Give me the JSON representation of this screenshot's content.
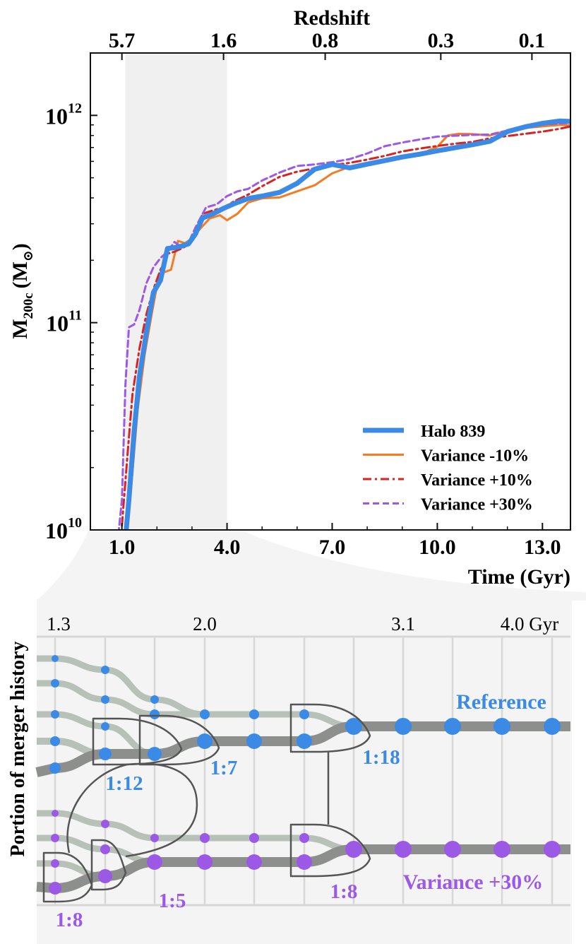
{
  "chart_data": [
    {
      "type": "line",
      "title": "",
      "top_axis_label": "Redshift",
      "top_ticks": [
        {
          "t": 1.0,
          "label": "5.7"
        },
        {
          "t": 3.9,
          "label": "1.6"
        },
        {
          "t": 6.8,
          "label": "0.8"
        },
        {
          "t": 10.1,
          "label": "0.3"
        },
        {
          "t": 12.7,
          "label": "0.1"
        }
      ],
      "xlabel": "Time (Gyr)",
      "ylabel_main": "M",
      "ylabel_sub": "200c",
      "ylabel_unit": "(M",
      "ylabel_unit_symbol": "⊙",
      "ylabel_close": ")",
      "xlim": [
        0.1,
        13.8
      ],
      "ylim": [
        10000000000,
        2000000000000
      ],
      "yscale": "log",
      "x_ticks": [
        {
          "value": 1.0,
          "label": "1.0"
        },
        {
          "value": 4.0,
          "label": "4.0"
        },
        {
          "value": 7.0,
          "label": "7.0"
        },
        {
          "value": 10.0,
          "label": "10.0"
        },
        {
          "value": 13.0,
          "label": "13.0"
        }
      ],
      "y_ticks": [
        {
          "value": 10000000000,
          "base": "10",
          "exp": "10"
        },
        {
          "value": 100000000000,
          "base": "10",
          "exp": "11"
        },
        {
          "value": 1000000000000,
          "base": "10",
          "exp": "12"
        }
      ],
      "shaded_span": [
        1.1,
        4.0
      ],
      "legend_position": "bottom-right",
      "series": [
        {
          "name": "Halo 839",
          "color": "#3b8ae6",
          "style": "solid",
          "x": [
            1.1,
            1.2,
            1.35,
            1.5,
            1.7,
            1.9,
            2.1,
            2.3,
            2.5,
            2.7,
            2.9,
            3.1,
            3.3,
            3.6,
            3.9,
            4.2,
            4.6,
            5.0,
            5.5,
            6.0,
            6.5,
            7.0,
            7.5,
            8.0,
            8.5,
            9.0,
            9.5,
            10.0,
            10.5,
            11.0,
            11.5,
            12.0,
            12.5,
            13.0,
            13.5,
            13.8
          ],
          "y": [
            9000000000,
            14000000000,
            30000000000,
            55000000000,
            90000000000,
            140000000000,
            160000000000,
            228000000000,
            230000000000,
            234000000000,
            240000000000,
            268000000000,
            320000000000,
            335000000000,
            356000000000,
            375000000000,
            397000000000,
            408000000000,
            425000000000,
            470000000000,
            550000000000,
            580000000000,
            558000000000,
            582000000000,
            605000000000,
            630000000000,
            650000000000,
            675000000000,
            698000000000,
            722000000000,
            750000000000,
            835000000000,
            880000000000,
            915000000000,
            940000000000,
            935000000000
          ]
        },
        {
          "name": "Variance -10%",
          "color": "#f47c22",
          "style": "solid",
          "x": [
            1.1,
            1.25,
            1.45,
            1.65,
            1.85,
            2.0,
            2.2,
            2.4,
            2.6,
            2.8,
            3.0,
            3.2,
            3.5,
            3.8,
            4.0,
            4.3,
            4.6,
            5.0,
            5.5,
            6.0,
            6.5,
            7.0,
            7.5,
            8.0,
            8.5,
            9.0,
            9.5,
            10.0,
            10.3,
            10.6,
            11.0,
            11.5,
            12.0,
            12.5,
            13.0,
            13.5,
            13.8
          ],
          "y": [
            9500000000,
            15000000000,
            38000000000,
            70000000000,
            110000000000,
            150000000000,
            175000000000,
            180000000000,
            248000000000,
            242000000000,
            255000000000,
            280000000000,
            318000000000,
            330000000000,
            312000000000,
            336000000000,
            380000000000,
            398000000000,
            402000000000,
            430000000000,
            460000000000,
            525000000000,
            565000000000,
            586000000000,
            602000000000,
            622000000000,
            650000000000,
            705000000000,
            800000000000,
            815000000000,
            812000000000,
            800000000000,
            845000000000,
            870000000000,
            885000000000,
            900000000000,
            895000000000
          ]
        },
        {
          "name": "Variance +10%",
          "color": "#d62424",
          "style": "dashdot",
          "x": [
            1.0,
            1.15,
            1.3,
            1.5,
            1.7,
            1.9,
            2.1,
            2.3,
            2.5,
            2.7,
            2.9,
            3.1,
            3.3,
            3.6,
            3.9,
            4.2,
            4.6,
            5.0,
            5.5,
            6.0,
            6.5,
            7.0,
            7.5,
            8.0,
            8.5,
            9.0,
            9.5,
            10.0,
            10.5,
            11.0,
            11.5,
            12.0,
            12.5,
            13.0,
            13.5,
            13.8
          ],
          "y": [
            10500000000,
            22000000000,
            45000000000,
            75000000000,
            110000000000,
            145000000000,
            180000000000,
            215000000000,
            220000000000,
            228000000000,
            238000000000,
            268000000000,
            335000000000,
            348000000000,
            360000000000,
            385000000000,
            415000000000,
            455000000000,
            505000000000,
            535000000000,
            555000000000,
            575000000000,
            590000000000,
            612000000000,
            638000000000,
            670000000000,
            692000000000,
            712000000000,
            730000000000,
            745000000000,
            775000000000,
            795000000000,
            815000000000,
            835000000000,
            862000000000,
            885000000000
          ]
        },
        {
          "name": "Variance +30%",
          "color": "#9b59e6",
          "style": "dashed",
          "x": [
            0.9,
            1.0,
            1.1,
            1.2,
            1.35,
            1.5,
            1.7,
            1.9,
            2.1,
            2.3,
            2.5,
            2.7,
            2.9,
            3.1,
            3.4,
            3.7,
            4.0,
            4.3,
            4.6,
            5.0,
            5.5,
            6.0,
            6.5,
            7.0,
            7.5,
            8.0,
            8.5,
            9.0,
            9.5,
            10.0,
            10.5,
            11.0,
            11.5,
            12.0,
            12.5,
            13.0,
            13.5,
            13.8
          ],
          "y": [
            9500000000,
            14000000000,
            50000000000,
            95000000000,
            98000000000,
            115000000000,
            155000000000,
            185000000000,
            205000000000,
            220000000000,
            245000000000,
            232000000000,
            243000000000,
            288000000000,
            360000000000,
            372000000000,
            408000000000,
            430000000000,
            442000000000,
            485000000000,
            530000000000,
            570000000000,
            580000000000,
            595000000000,
            615000000000,
            655000000000,
            710000000000,
            740000000000,
            765000000000,
            790000000000,
            798000000000,
            805000000000,
            808000000000,
            845000000000,
            875000000000,
            902000000000,
            915000000000,
            920000000000
          ]
        }
      ]
    },
    {
      "type": "diagram",
      "ylabel": "Portion of merger history",
      "top_ticks": [
        {
          "t": 1.3,
          "label": "1.3"
        },
        {
          "t": 2.0,
          "label": "2.0"
        },
        {
          "t": 3.1,
          "label": "3.1"
        },
        {
          "t": 4.0,
          "label": "4.0 Gyr"
        }
      ],
      "reference_label": "Reference",
      "reference_color": "#3b8ae6",
      "variance_label": "Variance +30%",
      "variance_color": "#9b59e6",
      "reference_ratios": [
        "1:12",
        "1:7",
        "1:18"
      ],
      "variance_ratios": [
        "1:8",
        "1:5",
        "1:8"
      ]
    }
  ]
}
